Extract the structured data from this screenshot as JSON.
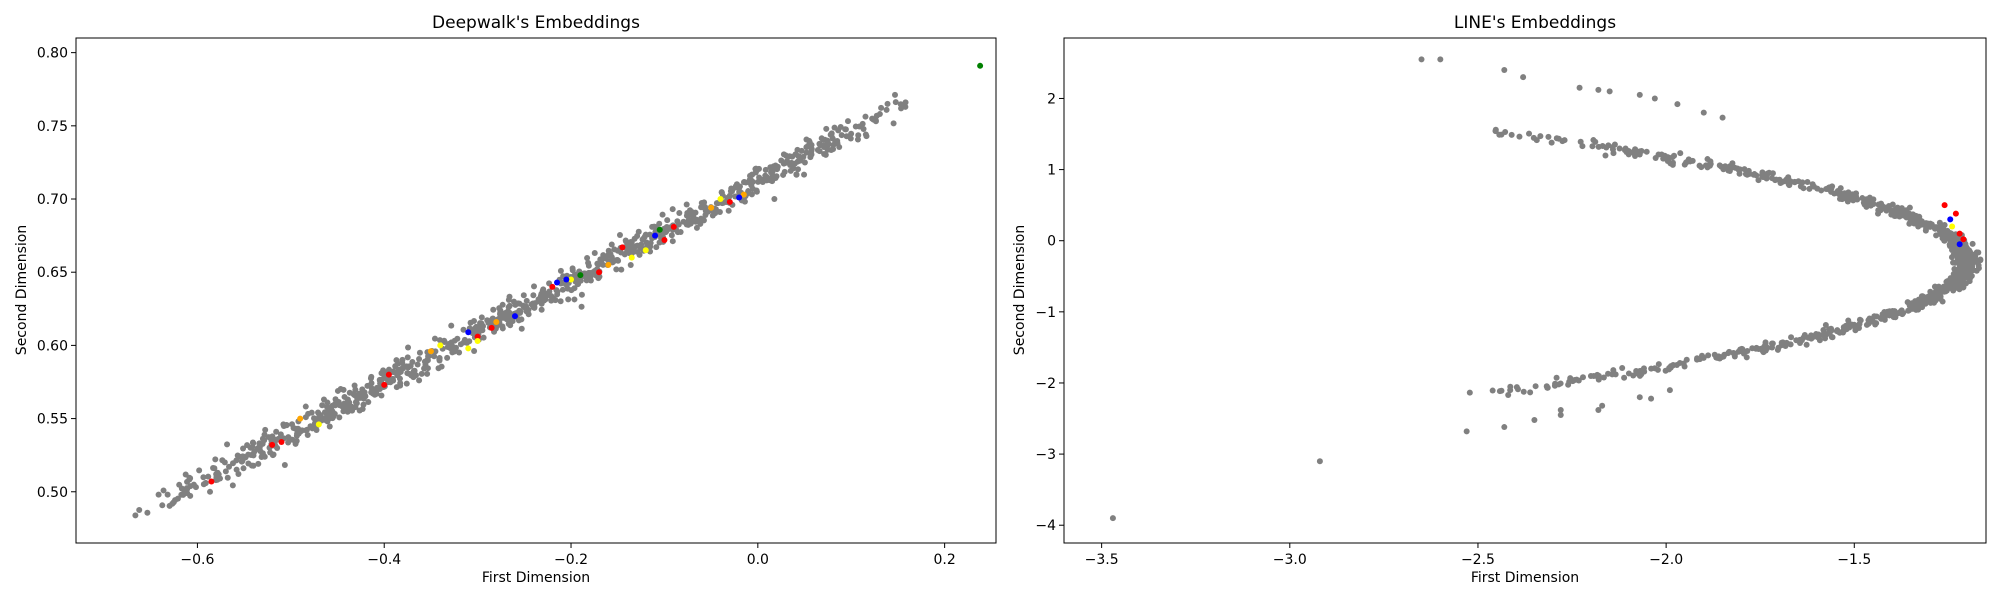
{
  "chart_data": [
    {
      "type": "scatter",
      "title": "Deepwalk's Embeddings",
      "xlabel": "First Dimension",
      "ylabel": "Second Dimension",
      "xlim": [
        -0.73,
        0.255
      ],
      "ylim": [
        0.465,
        0.81
      ],
      "xticks": [
        -0.6,
        -0.4,
        -0.2,
        0.0,
        0.2
      ],
      "xtick_labels": [
        "−0.6",
        "−0.4",
        "−0.2",
        "0.0",
        "0.2"
      ],
      "yticks": [
        0.5,
        0.55,
        0.6,
        0.65,
        0.7,
        0.75,
        0.8
      ],
      "ytick_labels": [
        "0.50",
        "0.55",
        "0.60",
        "0.65",
        "0.70",
        "0.75",
        "0.80"
      ],
      "grid": false,
      "series": [
        {
          "color": "#808080",
          "generator": {
            "kind": "linear-band",
            "x_range": [
              -0.68,
              0.175
            ],
            "line": {
              "x0": -0.68,
              "y0": 0.479,
              "x1": 0.175,
              "y1": 0.772
            },
            "noise": 0.005,
            "count": 900
          }
        },
        {
          "color": "#ff0000",
          "points": [
            [
              -0.585,
              0.507
            ],
            [
              -0.52,
              0.532
            ],
            [
              -0.51,
              0.534
            ],
            [
              -0.395,
              0.58
            ],
            [
              -0.3,
              0.606
            ],
            [
              -0.285,
              0.612
            ],
            [
              -0.22,
              0.64
            ],
            [
              -0.17,
              0.65
            ],
            [
              -0.145,
              0.667
            ],
            [
              -0.1,
              0.672
            ],
            [
              -0.09,
              0.681
            ],
            [
              -0.03,
              0.698
            ],
            [
              -0.4,
              0.573
            ]
          ]
        },
        {
          "color": "#ffff00",
          "points": [
            [
              -0.47,
              0.546
            ],
            [
              -0.34,
              0.6
            ],
            [
              -0.31,
              0.598
            ],
            [
              -0.3,
              0.603
            ],
            [
              -0.135,
              0.66
            ],
            [
              -0.12,
              0.665
            ],
            [
              -0.2,
              0.645
            ],
            [
              -0.04,
              0.7
            ]
          ]
        },
        {
          "color": "#ffa500",
          "points": [
            [
              -0.49,
              0.55
            ],
            [
              -0.35,
              0.596
            ],
            [
              -0.28,
              0.616
            ],
            [
              -0.16,
              0.655
            ],
            [
              -0.05,
              0.694
            ],
            [
              -0.015,
              0.703
            ]
          ]
        },
        {
          "color": "#0000ff",
          "points": [
            [
              -0.31,
              0.609
            ],
            [
              -0.26,
              0.62
            ],
            [
              -0.215,
              0.643
            ],
            [
              -0.205,
              0.645
            ],
            [
              -0.02,
              0.701
            ],
            [
              -0.11,
              0.675
            ]
          ]
        },
        {
          "color": "#008000",
          "points": [
            [
              0.238,
              0.791
            ],
            [
              -0.19,
              0.648
            ],
            [
              -0.105,
              0.679
            ]
          ]
        }
      ]
    },
    {
      "type": "scatter",
      "title": "LINE's Embeddings",
      "xlabel": "First Dimension",
      "ylabel": "Second Dimension",
      "xlim": [
        -3.6,
        -1.15
      ],
      "ylim": [
        -4.25,
        2.85
      ],
      "xticks": [
        -3.5,
        -3.0,
        -2.5,
        -2.0,
        -1.5
      ],
      "xtick_labels": [
        "−3.5",
        "−3.0",
        "−2.5",
        "−2.0",
        "−1.5"
      ],
      "yticks": [
        -4,
        -3,
        -2,
        -1,
        0,
        1,
        2
      ],
      "ytick_labels": [
        "−4",
        "−3",
        "−2",
        "−1",
        "0",
        "1",
        "2"
      ],
      "grid": false,
      "series": [
        {
          "color": "#808080",
          "generator": {
            "kind": "parabola-band",
            "vertex": [
              -1.2,
              -0.3
            ],
            "curvature": 0.37,
            "noise": 0.012,
            "count": 1100
          }
        },
        {
          "color": "#808080",
          "points": [
            [
              -3.47,
              -3.9
            ],
            [
              -2.92,
              -3.1
            ],
            [
              -2.53,
              -2.68
            ],
            [
              -2.43,
              -2.62
            ],
            [
              -2.35,
              -2.52
            ],
            [
              -2.28,
              -2.45
            ],
            [
              -2.28,
              -2.38
            ],
            [
              -2.18,
              -2.38
            ],
            [
              -2.17,
              -2.32
            ],
            [
              -2.07,
              -2.2
            ],
            [
              -2.04,
              -2.22
            ],
            [
              -1.99,
              -2.1
            ],
            [
              -2.65,
              2.55
            ],
            [
              -2.6,
              2.55
            ],
            [
              -2.43,
              2.4
            ],
            [
              -2.38,
              2.3
            ],
            [
              -2.23,
              2.15
            ],
            [
              -2.18,
              2.12
            ],
            [
              -2.15,
              2.1
            ],
            [
              -2.07,
              2.05
            ],
            [
              -2.03,
              2.0
            ],
            [
              -1.97,
              1.92
            ],
            [
              -1.9,
              1.8
            ],
            [
              -1.85,
              1.73
            ]
          ]
        },
        {
          "color": "#ff0000",
          "points": [
            [
              -1.23,
              0.38
            ],
            [
              -1.22,
              0.1
            ],
            [
              -1.21,
              0.02
            ],
            [
              -1.26,
              0.5
            ]
          ]
        },
        {
          "color": "#0000ff",
          "points": [
            [
              -1.245,
              0.3
            ],
            [
              -1.22,
              -0.05
            ]
          ]
        },
        {
          "color": "#ffff00",
          "points": [
            [
              -1.24,
              0.2
            ]
          ]
        }
      ]
    }
  ]
}
